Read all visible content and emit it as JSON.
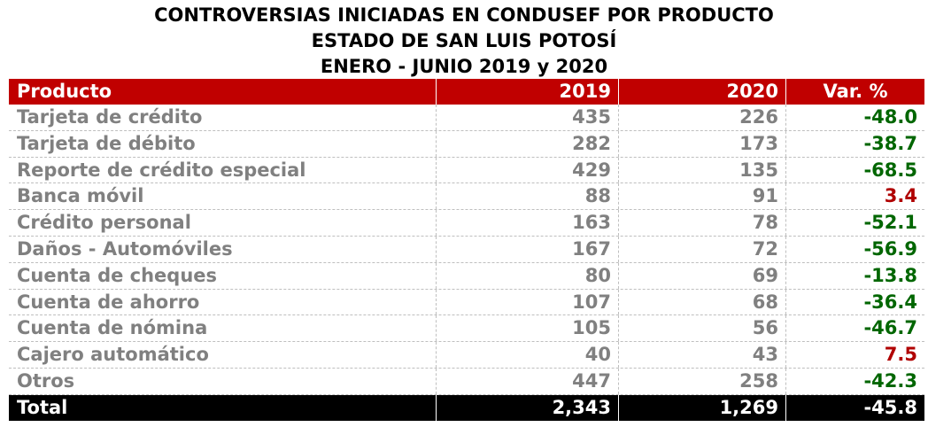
{
  "title": {
    "line1": "CONTROVERSIAS INICIADAS EN CONDUSEF POR PRODUCTO",
    "line2": "ESTADO DE SAN LUIS POTOSÍ",
    "line3": "ENERO - JUNIO 2019 y 2020"
  },
  "table": {
    "headers": {
      "product": "Producto",
      "year_2019": "2019",
      "year_2020": "2020",
      "variation": "Var. %"
    },
    "rows": [
      {
        "product": "Tarjeta de crédito",
        "v2019": "435",
        "v2020": "226",
        "var": "-48.0"
      },
      {
        "product": "Tarjeta de débito",
        "v2019": "282",
        "v2020": "173",
        "var": "-38.7"
      },
      {
        "product": "Reporte de crédito especial",
        "v2019": "429",
        "v2020": "135",
        "var": "-68.5"
      },
      {
        "product": "Banca móvil",
        "v2019": "88",
        "v2020": "91",
        "var": "3.4"
      },
      {
        "product": "Crédito personal",
        "v2019": "163",
        "v2020": "78",
        "var": "-52.1"
      },
      {
        "product": "Daños - Automóviles",
        "v2019": "167",
        "v2020": "72",
        "var": "-56.9"
      },
      {
        "product": "Cuenta de cheques",
        "v2019": "80",
        "v2020": "69",
        "var": "-13.8"
      },
      {
        "product": "Cuenta de ahorro",
        "v2019": "107",
        "v2020": "68",
        "var": "-36.4"
      },
      {
        "product": "Cuenta de nómina",
        "v2019": "105",
        "v2020": "56",
        "var": "-46.7"
      },
      {
        "product": "Cajero automático",
        "v2019": "40",
        "v2020": "43",
        "var": "7.5"
      },
      {
        "product": "Otros",
        "v2019": "447",
        "v2020": "258",
        "var": "-42.3"
      }
    ],
    "total": {
      "label": "Total",
      "v2019": "2,343",
      "v2020": "1,269",
      "var": "-45.8"
    }
  },
  "colors": {
    "header_bg": "#c00000",
    "total_bg": "#000000",
    "negative": "#006600",
    "positive": "#b00000",
    "body_text": "#808080"
  }
}
